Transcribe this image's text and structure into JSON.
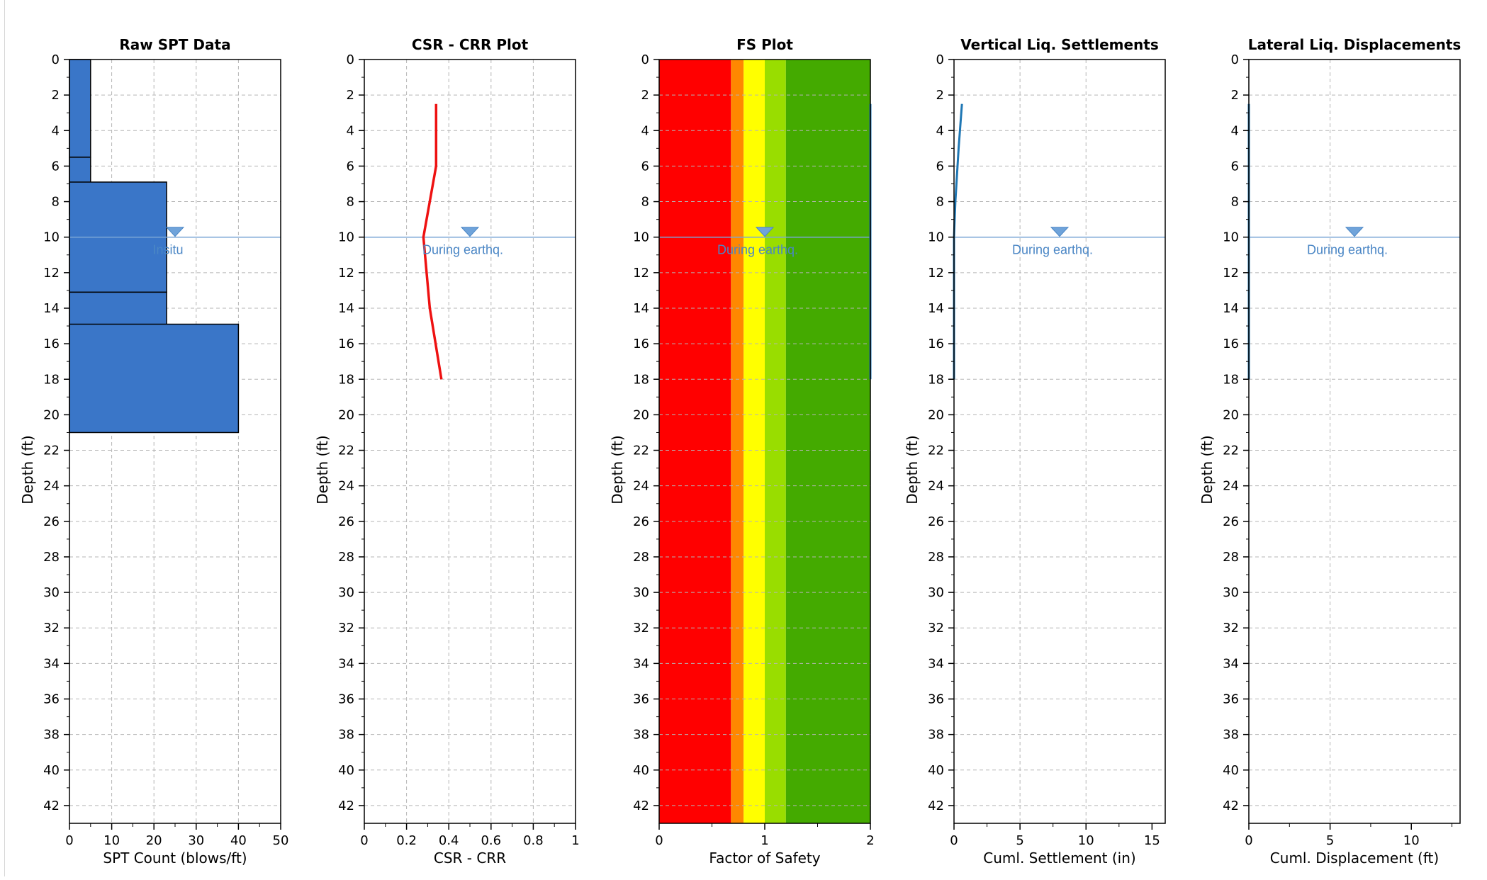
{
  "colors": {
    "grid": "#b5b5b5",
    "spt_fill": "#3a76c8",
    "csr_line": "#ee1111",
    "water": "#7aa6d6",
    "water_marker": "#6fa3da",
    "settlement_line": "#1f77b4",
    "fs_bands": [
      "#ff0000",
      "#ff8800",
      "#ffff00",
      "#99dd00",
      "#44aa00"
    ]
  },
  "depth_axis": {
    "label": "Depth (ft)",
    "range": [
      0,
      43
    ],
    "ticks": [
      0,
      2,
      4,
      6,
      8,
      10,
      12,
      14,
      16,
      18,
      20,
      22,
      24,
      26,
      28,
      30,
      32,
      34,
      36,
      38,
      40,
      42
    ],
    "tick_labels": [
      "0",
      "2",
      "4",
      "6",
      "8",
      "10",
      "12",
      "14",
      "16",
      "18",
      "20",
      "22",
      "24",
      "26",
      "28",
      "30",
      "32",
      "34",
      "36",
      "38",
      "40",
      "42"
    ]
  },
  "chart_data": [
    {
      "id": "spt",
      "type": "bar",
      "title": "Raw SPT Data",
      "xlabel": "SPT Count (blows/ft)",
      "ylabel": "Depth (ft)",
      "xlim": [
        0,
        50
      ],
      "xticks": [
        0,
        10,
        20,
        30,
        40,
        50
      ],
      "xtick_labels": [
        "0",
        "10",
        "20",
        "30",
        "40",
        "50"
      ],
      "bars": [
        {
          "top": 0,
          "bottom": 5.5,
          "value": 5
        },
        {
          "top": 5.5,
          "bottom": 8.7,
          "value": 5
        },
        {
          "top": 6.9,
          "bottom": 13.1,
          "value": 23
        },
        {
          "top": 13.1,
          "bottom": 16.0,
          "value": 23
        },
        {
          "top": 14.9,
          "bottom": 21.0,
          "value": 40
        }
      ],
      "water_table": {
        "depth": 10,
        "x": 25,
        "label": "Insitu"
      }
    },
    {
      "id": "csr",
      "type": "line",
      "title": "CSR - CRR Plot",
      "xlabel": "CSR - CRR",
      "ylabel": "Depth (ft)",
      "xlim": [
        0,
        1
      ],
      "xticks": [
        0,
        0.2,
        0.4,
        0.6,
        0.8,
        1
      ],
      "xtick_labels": [
        "0",
        "0.2",
        "0.4",
        "0.6",
        "0.8",
        "1"
      ],
      "series": [
        {
          "points": [
            [
              0.34,
              2.5
            ],
            [
              0.34,
              6.0
            ],
            [
              0.28,
              10.0
            ],
            [
              0.31,
              14.0
            ],
            [
              0.365,
              18.0
            ]
          ]
        }
      ],
      "water_table": {
        "depth": 10,
        "x": 0.5,
        "label": "During earthq."
      }
    },
    {
      "id": "fs",
      "type": "area",
      "title": "FS Plot",
      "xlabel": "Factor of Safety",
      "ylabel": "Depth (ft)",
      "xlim": [
        0,
        2
      ],
      "xticks": [
        0,
        1,
        2
      ],
      "xtick_labels": [
        "0",
        "1",
        "2"
      ],
      "bands": [
        {
          "from": 0,
          "to": 0.68
        },
        {
          "from": 0.68,
          "to": 0.8
        },
        {
          "from": 0.8,
          "to": 1.0
        },
        {
          "from": 1.0,
          "to": 1.2
        },
        {
          "from": 1.2,
          "to": 2.0
        }
      ],
      "series": [
        {
          "points": [
            [
              2,
              2.5
            ],
            [
              2,
              18.0
            ]
          ]
        }
      ],
      "water_table": {
        "depth": 10,
        "x": 1.0,
        "label": "During earthq."
      }
    },
    {
      "id": "settle",
      "type": "line",
      "title": "Vertical Liq. Settlements",
      "xlabel": "Cuml. Settlement (in)",
      "ylabel": "Depth (ft)",
      "xlim": [
        0,
        16
      ],
      "xticks": [
        0,
        5,
        10,
        15
      ],
      "xtick_labels": [
        "0",
        "5",
        "10",
        "15"
      ],
      "series": [
        {
          "points": [
            [
              0.6,
              2.5
            ],
            [
              0.35,
              5.0
            ],
            [
              0.1,
              8.0
            ],
            [
              0,
              10.0
            ],
            [
              0,
              18.0
            ]
          ]
        }
      ],
      "water_table": {
        "depth": 10,
        "x": 8,
        "label": "During earthq."
      }
    },
    {
      "id": "lateral",
      "type": "line",
      "title": "Lateral Liq. Displacements",
      "xlabel": "Cuml. Displacement (ft)",
      "ylabel": "Depth (ft)",
      "xlim": [
        0,
        13
      ],
      "xticks": [
        0,
        5,
        10
      ],
      "xtick_labels": [
        "0",
        "5",
        "10"
      ],
      "series": [
        {
          "points": [
            [
              0,
              2.5
            ],
            [
              0,
              18.0
            ]
          ]
        }
      ],
      "water_table": {
        "depth": 10,
        "x": 6.5,
        "label": "During earthq."
      }
    }
  ]
}
